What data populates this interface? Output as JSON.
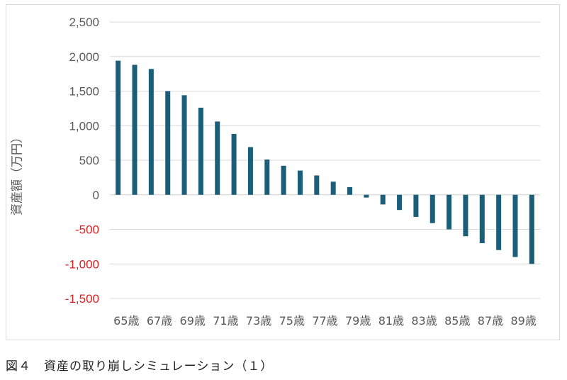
{
  "caption": "図４　資産の取り崩しシミュレーション（１）",
  "chart_data": {
    "type": "bar",
    "ylabel": "資産額（万円）",
    "xlabel": "",
    "ylim": [
      -1500,
      2500
    ],
    "yticks": [
      2500,
      2000,
      1500,
      1000,
      500,
      0,
      -500,
      -1000,
      -1500
    ],
    "ytick_labels": [
      "2,500",
      "2,000",
      "1,500",
      "1,000",
      "500",
      "0",
      "-500",
      "-1,000",
      "-1,500"
    ],
    "negative_tick_color": "#e02020",
    "positive_tick_color": "#595959",
    "bar_color": "#1a5e7a",
    "grid": true,
    "categories": [
      "65歳",
      "66歳",
      "67歳",
      "68歳",
      "69歳",
      "70歳",
      "71歳",
      "72歳",
      "73歳",
      "74歳",
      "75歳",
      "76歳",
      "77歳",
      "78歳",
      "79歳",
      "80歳",
      "81歳",
      "82歳",
      "83歳",
      "84歳",
      "85歳",
      "86歳",
      "87歳",
      "88歳",
      "89歳",
      "90歳"
    ],
    "category_labels_shown": [
      "65歳",
      "67歳",
      "69歳",
      "71歳",
      "73歳",
      "75歳",
      "77歳",
      "79歳",
      "81歳",
      "83歳",
      "85歳",
      "87歳",
      "89歳"
    ],
    "values": [
      1940,
      1880,
      1820,
      1500,
      1440,
      1260,
      1060,
      880,
      690,
      510,
      420,
      350,
      280,
      190,
      110,
      -40,
      -140,
      -220,
      -320,
      -410,
      -500,
      -600,
      -700,
      -800,
      -900,
      -1000
    ]
  }
}
